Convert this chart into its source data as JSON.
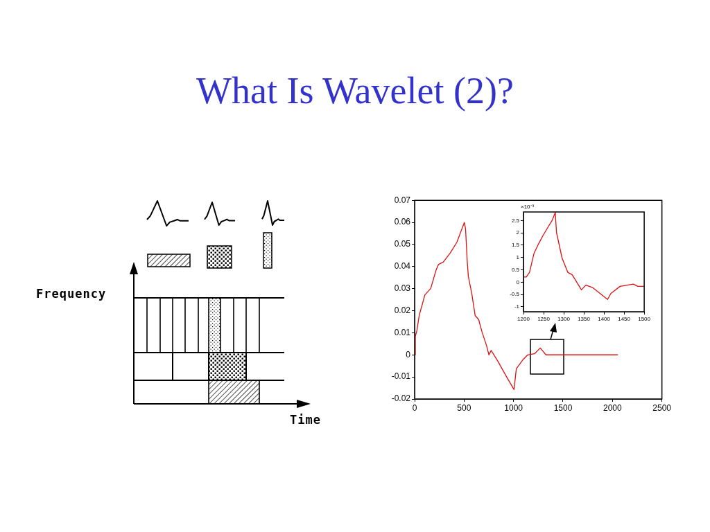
{
  "chart_data": [
    {
      "type": "other",
      "title": "What Is Wavelet (2)?",
      "annotations": [
        "Frequency",
        "Time"
      ]
    },
    {
      "type": "line",
      "xlim": [
        0,
        2500
      ],
      "xticks": [
        0,
        500,
        1000,
        1500,
        2000,
        2500
      ],
      "ylim": [
        -0.02,
        0.07
      ],
      "yticks": [
        -0.02,
        -0.01,
        0,
        0.01,
        0.02,
        0.03,
        0.04,
        0.05,
        0.06,
        0.07
      ],
      "legend": false,
      "marker": "none",
      "series": [
        {
          "color": "#dd1111",
          "x": [
            0,
            7,
            23,
            46,
            104,
            162,
            219,
            242,
            289,
            358,
            427,
            503,
            515,
            531,
            543,
            577,
            612,
            647,
            681,
            727,
            751,
            774,
            843,
            935,
            1005,
            1028,
            1097,
            1143,
            1212,
            1270,
            1328,
            2055
          ],
          "values": [
            0,
            0.0084,
            0.011,
            0.0178,
            0.0272,
            0.03,
            0.0387,
            0.041,
            0.042,
            0.046,
            0.051,
            0.06,
            0.057,
            0.043,
            0.0355,
            0.028,
            0.0178,
            0.016,
            0.0104,
            0.0042,
            0,
            0.002,
            -0.003,
            -0.0104,
            -0.0157,
            -0.0063,
            -0.0021,
            0,
            0.0005,
            0.0031,
            0,
            0
          ]
        }
      ]
    },
    {
      "type": "line",
      "xlim": [
        1200,
        1500
      ],
      "xticks": [
        1200,
        1250,
        1300,
        1350,
        1400,
        1450,
        1500
      ],
      "ylim": [
        -1.2,
        2.85
      ],
      "yticks": [
        -1,
        -0.5,
        0,
        0.5,
        1,
        1.5,
        2,
        2.5
      ],
      "legend": false,
      "marker": "none",
      "annotations": [
        "×10⁻³"
      ],
      "series": [
        {
          "color": "#dd1111",
          "x": [
            1200,
            1207,
            1215,
            1226,
            1237,
            1248,
            1260,
            1271,
            1279,
            1282,
            1296,
            1310,
            1321,
            1344,
            1355,
            1372,
            1409,
            1417,
            1440,
            1473,
            1484,
            1500
          ],
          "values": [
            0.21,
            0.21,
            0.4,
            1.16,
            1.54,
            1.88,
            2.21,
            2.5,
            2.83,
            2.02,
            0.97,
            0.4,
            0.3,
            -0.31,
            -0.12,
            -0.22,
            -0.7,
            -0.46,
            -0.17,
            -0.08,
            -0.17,
            -0.17
          ]
        }
      ]
    }
  ]
}
